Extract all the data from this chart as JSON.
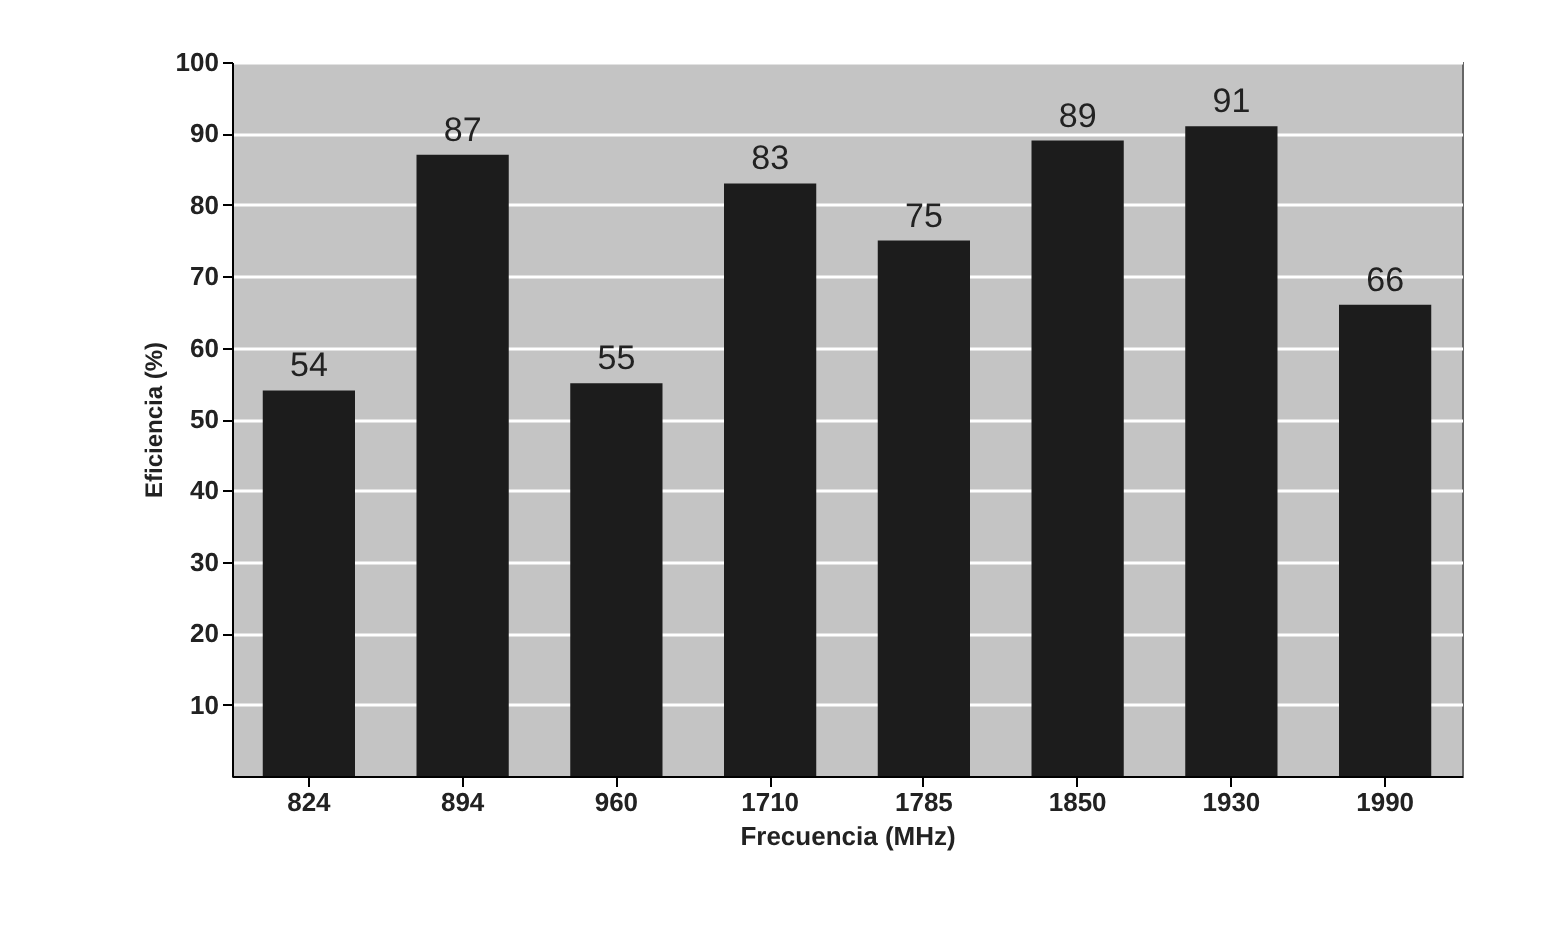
{
  "chart_data": {
    "type": "bar",
    "xlabel": "Frecuencia (MHz)",
    "ylabel": "Eficiencia (%)",
    "categories": [
      "824",
      "894",
      "960",
      "1710",
      "1785",
      "1850",
      "1930",
      "1990"
    ],
    "values": [
      54,
      87,
      55,
      83,
      75,
      89,
      91,
      66
    ],
    "color": "#1c1c1c",
    "ylim": [
      0,
      100
    ],
    "yticks": [
      10,
      20,
      30,
      40,
      50,
      60,
      70,
      80,
      90,
      100
    ],
    "grid": "y",
    "data_labels": true
  }
}
